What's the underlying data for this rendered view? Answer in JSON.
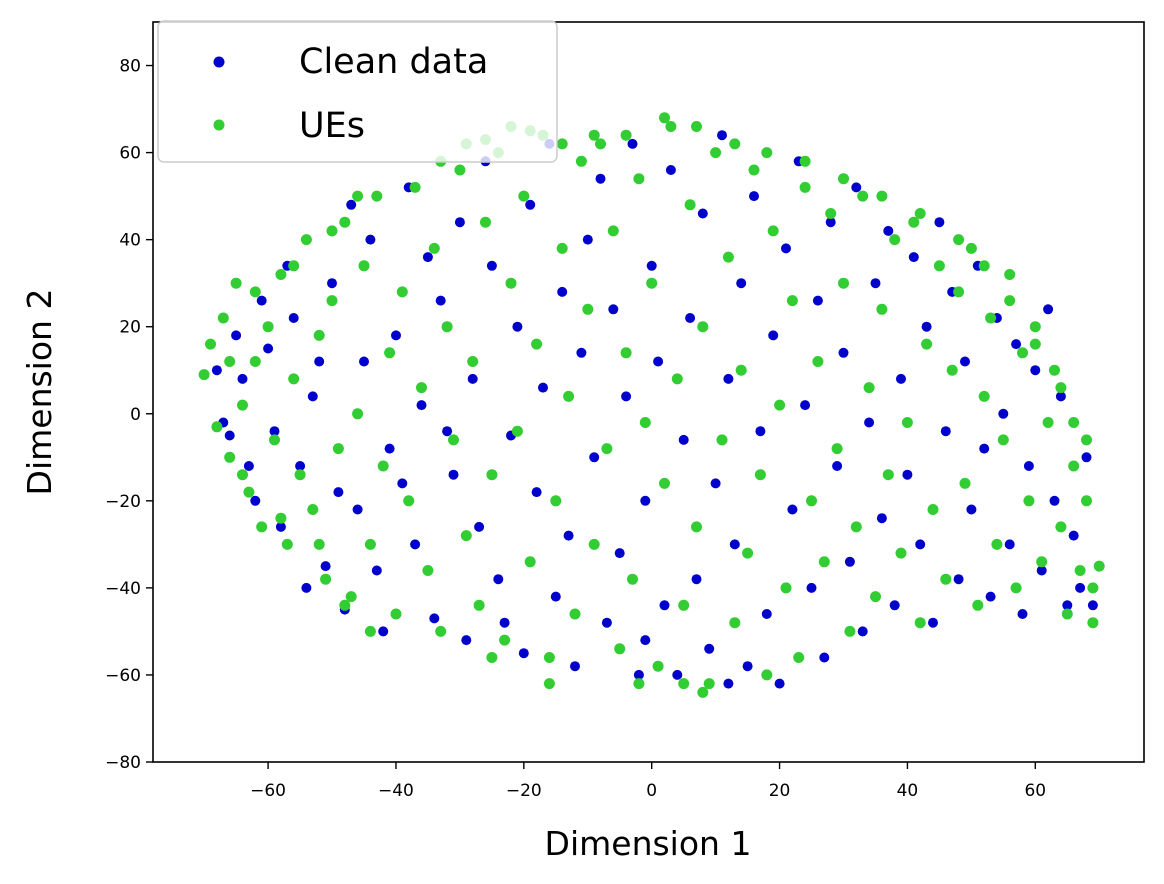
{
  "chart_data": {
    "type": "scatter",
    "title": "",
    "xlabel": "Dimension 1",
    "ylabel": "Dimension 2",
    "xlim": [
      -78,
      77
    ],
    "ylim": [
      -80,
      90
    ],
    "xticks": [
      -60,
      -40,
      -20,
      0,
      20,
      40,
      60
    ],
    "yticks": [
      -80,
      -60,
      -40,
      -20,
      0,
      20,
      40,
      60,
      80
    ],
    "xtick_labels": [
      "−60",
      "−40",
      "−20",
      "0",
      "20",
      "40",
      "60"
    ],
    "ytick_labels": [
      "−80",
      "−60",
      "−40",
      "−20",
      "0",
      "20",
      "40",
      "60",
      "80"
    ],
    "grid": false,
    "legend_position": "top-left",
    "series": [
      {
        "name": "Clean data",
        "color": "#0000cd",
        "values_note_free": true,
        "points": [
          [
            -66,
            -5
          ],
          [
            -64,
            8
          ],
          [
            -62,
            -20
          ],
          [
            -60,
            15
          ],
          [
            -58,
            -26
          ],
          [
            -56,
            22
          ],
          [
            -55,
            -12
          ],
          [
            -53,
            4
          ],
          [
            -51,
            -35
          ],
          [
            -50,
            30
          ],
          [
            -48,
            -45
          ],
          [
            -46,
            -22
          ],
          [
            -45,
            12
          ],
          [
            -44,
            40
          ],
          [
            -42,
            -50
          ],
          [
            -41,
            -8
          ],
          [
            -40,
            18
          ],
          [
            -38,
            52
          ],
          [
            -37,
            -30
          ],
          [
            -36,
            2
          ],
          [
            -34,
            -47
          ],
          [
            -33,
            26
          ],
          [
            -31,
            -14
          ],
          [
            -30,
            44
          ],
          [
            -29,
            -52
          ],
          [
            -28,
            8
          ],
          [
            -27,
            -26
          ],
          [
            -26,
            58
          ],
          [
            -25,
            34
          ],
          [
            -24,
            -38
          ],
          [
            -22,
            -5
          ],
          [
            -21,
            20
          ],
          [
            -20,
            -55
          ],
          [
            -19,
            48
          ],
          [
            -18,
            -18
          ],
          [
            -17,
            6
          ],
          [
            -16,
            62
          ],
          [
            -15,
            -42
          ],
          [
            -14,
            28
          ],
          [
            -13,
            -28
          ],
          [
            -12,
            -58
          ],
          [
            -11,
            14
          ],
          [
            -10,
            40
          ],
          [
            -9,
            -10
          ],
          [
            -8,
            54
          ],
          [
            -7,
            -48
          ],
          [
            -6,
            24
          ],
          [
            -5,
            -32
          ],
          [
            -4,
            4
          ],
          [
            -3,
            62
          ],
          [
            -2,
            -60
          ],
          [
            -1,
            -20
          ],
          [
            0,
            34
          ],
          [
            1,
            12
          ],
          [
            2,
            -44
          ],
          [
            3,
            56
          ],
          [
            4,
            -60
          ],
          [
            5,
            -6
          ],
          [
            6,
            22
          ],
          [
            7,
            -38
          ],
          [
            8,
            46
          ],
          [
            9,
            -54
          ],
          [
            10,
            -16
          ],
          [
            11,
            64
          ],
          [
            12,
            8
          ],
          [
            13,
            -30
          ],
          [
            14,
            30
          ],
          [
            15,
            -58
          ],
          [
            16,
            50
          ],
          [
            17,
            -4
          ],
          [
            18,
            -46
          ],
          [
            19,
            18
          ],
          [
            20,
            -62
          ],
          [
            21,
            38
          ],
          [
            22,
            -22
          ],
          [
            23,
            58
          ],
          [
            24,
            2
          ],
          [
            25,
            -40
          ],
          [
            26,
            26
          ],
          [
            27,
            -56
          ],
          [
            28,
            44
          ],
          [
            29,
            -12
          ],
          [
            30,
            14
          ],
          [
            31,
            -34
          ],
          [
            32,
            52
          ],
          [
            33,
            -50
          ],
          [
            34,
            -2
          ],
          [
            35,
            30
          ],
          [
            36,
            -24
          ],
          [
            37,
            42
          ],
          [
            38,
            -44
          ],
          [
            39,
            8
          ],
          [
            40,
            -14
          ],
          [
            41,
            36
          ],
          [
            42,
            -30
          ],
          [
            43,
            20
          ],
          [
            44,
            -48
          ],
          [
            45,
            44
          ],
          [
            46,
            -4
          ],
          [
            47,
            28
          ],
          [
            48,
            -38
          ],
          [
            49,
            12
          ],
          [
            50,
            -22
          ],
          [
            51,
            34
          ],
          [
            52,
            -8
          ],
          [
            53,
            -42
          ],
          [
            54,
            22
          ],
          [
            55,
            0
          ],
          [
            56,
            -30
          ],
          [
            57,
            16
          ],
          [
            58,
            -46
          ],
          [
            59,
            -12
          ],
          [
            60,
            10
          ],
          [
            61,
            -36
          ],
          [
            62,
            24
          ],
          [
            63,
            -20
          ],
          [
            64,
            4
          ],
          [
            65,
            -44
          ],
          [
            66,
            -28
          ],
          [
            67,
            -40
          ],
          [
            68,
            -10
          ],
          [
            69,
            -44
          ],
          [
            -68,
            10
          ],
          [
            -67,
            -2
          ],
          [
            -65,
            18
          ],
          [
            -63,
            -12
          ],
          [
            -61,
            26
          ],
          [
            -59,
            -4
          ],
          [
            -57,
            34
          ],
          [
            -54,
            -40
          ],
          [
            -52,
            12
          ],
          [
            -49,
            -18
          ],
          [
            -47,
            48
          ],
          [
            -43,
            -36
          ],
          [
            -39,
            -16
          ],
          [
            -35,
            36
          ],
          [
            -32,
            -4
          ],
          [
            -23,
            -48
          ],
          [
            -1,
            -52
          ],
          [
            12,
            -62
          ]
        ]
      },
      {
        "name": "UEs",
        "color": "#32cd32",
        "points": [
          [
            -70,
            9
          ],
          [
            -69,
            16
          ],
          [
            -68,
            -3
          ],
          [
            -67,
            22
          ],
          [
            -66,
            -10
          ],
          [
            -65,
            30
          ],
          [
            -64,
            2
          ],
          [
            -63,
            -18
          ],
          [
            -62,
            12
          ],
          [
            -61,
            -26
          ],
          [
            -60,
            20
          ],
          [
            -59,
            -6
          ],
          [
            -58,
            32
          ],
          [
            -57,
            -30
          ],
          [
            -56,
            8
          ],
          [
            -55,
            -14
          ],
          [
            -54,
            40
          ],
          [
            -53,
            -22
          ],
          [
            -52,
            18
          ],
          [
            -51,
            -38
          ],
          [
            -50,
            26
          ],
          [
            -49,
            -8
          ],
          [
            -48,
            44
          ],
          [
            -47,
            -42
          ],
          [
            -46,
            0
          ],
          [
            -45,
            34
          ],
          [
            -44,
            -30
          ],
          [
            -43,
            50
          ],
          [
            -42,
            -12
          ],
          [
            -41,
            14
          ],
          [
            -40,
            -46
          ],
          [
            -39,
            28
          ],
          [
            -38,
            -20
          ],
          [
            -37,
            52
          ],
          [
            -36,
            6
          ],
          [
            -35,
            -36
          ],
          [
            -34,
            38
          ],
          [
            -33,
            -50
          ],
          [
            -32,
            20
          ],
          [
            -31,
            -6
          ],
          [
            -30,
            56
          ],
          [
            -29,
            -28
          ],
          [
            -28,
            12
          ],
          [
            -27,
            -44
          ],
          [
            -26,
            44
          ],
          [
            -25,
            -14
          ],
          [
            -24,
            60
          ],
          [
            -23,
            -52
          ],
          [
            -22,
            30
          ],
          [
            -21,
            -4
          ],
          [
            -20,
            50
          ],
          [
            -19,
            -34
          ],
          [
            -18,
            16
          ],
          [
            -17,
            64
          ],
          [
            -16,
            -56
          ],
          [
            -15,
            -20
          ],
          [
            -14,
            38
          ],
          [
            -13,
            4
          ],
          [
            -12,
            -46
          ],
          [
            -11,
            58
          ],
          [
            -10,
            24
          ],
          [
            -9,
            -30
          ],
          [
            -8,
            62
          ],
          [
            -7,
            -8
          ],
          [
            -6,
            42
          ],
          [
            -5,
            -54
          ],
          [
            -4,
            14
          ],
          [
            -3,
            -38
          ],
          [
            -2,
            54
          ],
          [
            -1,
            -2
          ],
          [
            0,
            30
          ],
          [
            1,
            -58
          ],
          [
            2,
            -16
          ],
          [
            3,
            66
          ],
          [
            4,
            8
          ],
          [
            5,
            -44
          ],
          [
            6,
            48
          ],
          [
            7,
            -26
          ],
          [
            8,
            20
          ],
          [
            9,
            -62
          ],
          [
            10,
            60
          ],
          [
            11,
            -6
          ],
          [
            12,
            36
          ],
          [
            13,
            -48
          ],
          [
            14,
            10
          ],
          [
            15,
            -32
          ],
          [
            16,
            56
          ],
          [
            17,
            -14
          ],
          [
            18,
            -60
          ],
          [
            19,
            42
          ],
          [
            20,
            2
          ],
          [
            21,
            -40
          ],
          [
            22,
            26
          ],
          [
            23,
            -56
          ],
          [
            24,
            52
          ],
          [
            25,
            -20
          ],
          [
            26,
            12
          ],
          [
            27,
            -34
          ],
          [
            28,
            46
          ],
          [
            29,
            -8
          ],
          [
            30,
            30
          ],
          [
            31,
            -50
          ],
          [
            32,
            -26
          ],
          [
            33,
            50
          ],
          [
            34,
            6
          ],
          [
            35,
            -42
          ],
          [
            36,
            24
          ],
          [
            37,
            -14
          ],
          [
            38,
            40
          ],
          [
            39,
            -32
          ],
          [
            40,
            -2
          ],
          [
            41,
            44
          ],
          [
            42,
            -48
          ],
          [
            43,
            16
          ],
          [
            44,
            -22
          ],
          [
            45,
            34
          ],
          [
            46,
            -38
          ],
          [
            47,
            10
          ],
          [
            48,
            28
          ],
          [
            49,
            -16
          ],
          [
            50,
            38
          ],
          [
            51,
            -44
          ],
          [
            52,
            4
          ],
          [
            53,
            22
          ],
          [
            54,
            -30
          ],
          [
            55,
            -6
          ],
          [
            56,
            32
          ],
          [
            57,
            -40
          ],
          [
            58,
            14
          ],
          [
            59,
            -20
          ],
          [
            60,
            20
          ],
          [
            61,
            -34
          ],
          [
            62,
            -2
          ],
          [
            63,
            10
          ],
          [
            64,
            -26
          ],
          [
            65,
            -46
          ],
          [
            66,
            -12
          ],
          [
            67,
            -36
          ],
          [
            68,
            -20
          ],
          [
            69,
            -40
          ],
          [
            70,
            -35
          ],
          [
            -33,
            58
          ],
          [
            -29,
            62
          ],
          [
            -26,
            63
          ],
          [
            -22,
            66
          ],
          [
            -19,
            65
          ],
          [
            -14,
            62
          ],
          [
            -9,
            64
          ],
          [
            -4,
            64
          ],
          [
            2,
            68
          ],
          [
            7,
            66
          ],
          [
            13,
            62
          ],
          [
            18,
            60
          ],
          [
            24,
            58
          ],
          [
            30,
            54
          ],
          [
            36,
            50
          ],
          [
            42,
            46
          ],
          [
            48,
            40
          ],
          [
            52,
            34
          ],
          [
            56,
            26
          ],
          [
            60,
            16
          ],
          [
            64,
            6
          ],
          [
            66,
            -2
          ],
          [
            68,
            -6
          ],
          [
            69,
            -48
          ],
          [
            -2,
            -62
          ],
          [
            5,
            -62
          ],
          [
            8,
            -64
          ],
          [
            -16,
            -62
          ],
          [
            -25,
            -56
          ],
          [
            -44,
            -50
          ],
          [
            -48,
            -44
          ],
          [
            -52,
            -30
          ],
          [
            -58,
            -24
          ],
          [
            -64,
            -14
          ],
          [
            -66,
            12
          ],
          [
            -62,
            28
          ],
          [
            -56,
            34
          ],
          [
            -50,
            42
          ],
          [
            -46,
            50
          ]
        ]
      }
    ]
  }
}
